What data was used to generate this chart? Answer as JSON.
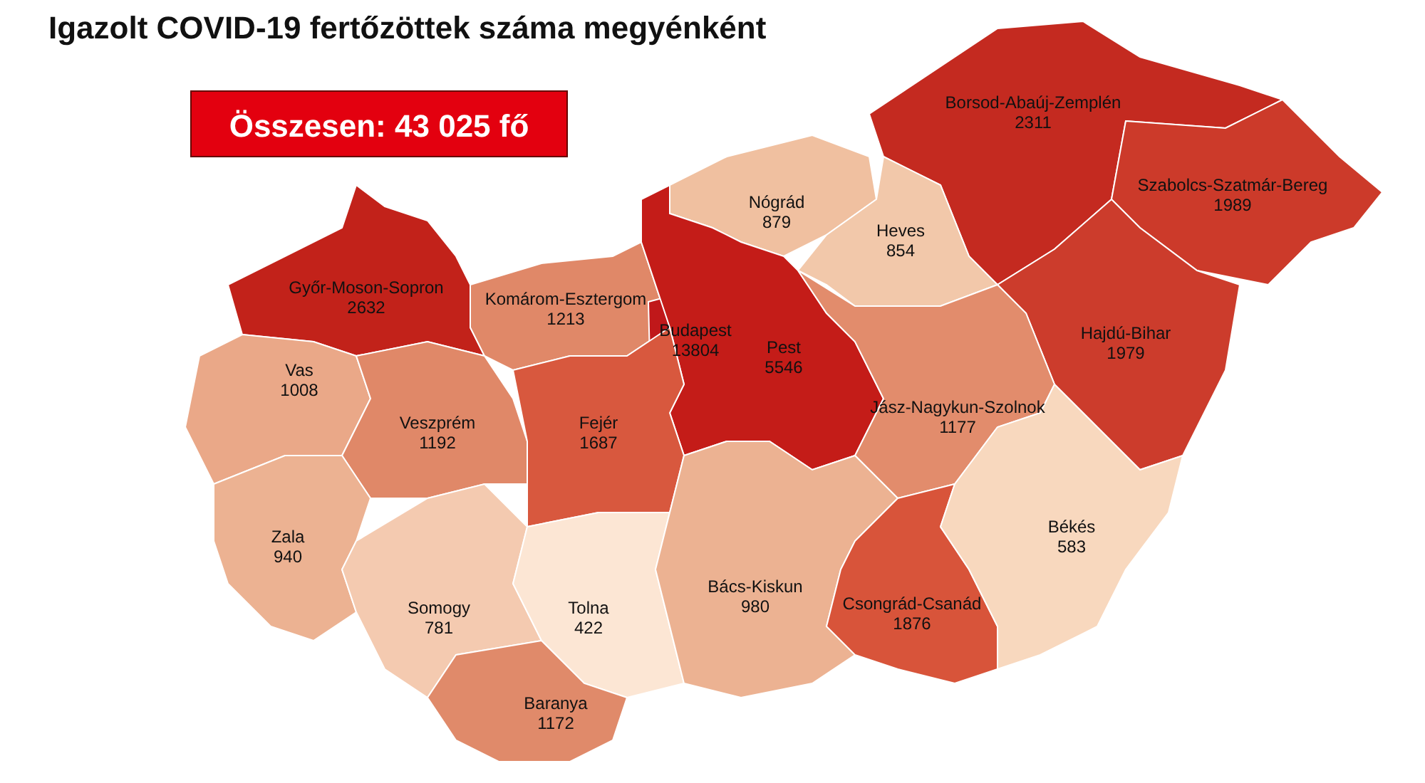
{
  "chart_data": {
    "type": "other",
    "title": "Igazolt COVID-19 fertőzöttek száma megyénként",
    "annotations": [
      "Összesen: 43 025 fő"
    ],
    "data_labels": true,
    "categories": [
      "Borsod-Abaúj-Zemplén",
      "Szabolcs-Szatmár-Bereg",
      "Nógrád",
      "Heves",
      "Győr-Moson-Sopron",
      "Komárom-Esztergom",
      "Budapest",
      "Pest",
      "Hajdú-Bihar",
      "Jász-Nagykun-Szolnok",
      "Vas",
      "Veszprém",
      "Fejér",
      "Zala",
      "Somogy",
      "Tolna",
      "Bács-Kiskun",
      "Csongrád-Csanád",
      "Békés",
      "Baranya"
    ],
    "values": [
      2311,
      1989,
      879,
      854,
      2632,
      1213,
      13804,
      5546,
      1979,
      1177,
      1008,
      1192,
      1687,
      940,
      781,
      422,
      980,
      1876,
      583,
      1172
    ],
    "colors": [
      "#c42a20",
      "#cc3a2a",
      "#f0c0a0",
      "#f2c8aa",
      "#c2221a",
      "#e08868",
      "#c0181a",
      "#c41c18",
      "#cc3c2c",
      "#e28c6c",
      "#eaa888",
      "#e08868",
      "#d8583e",
      "#ecb292",
      "#f4cab0",
      "#fce6d4",
      "#ecb292",
      "#d8543a",
      "#f8d8be",
      "#e08a6a"
    ]
  }
}
